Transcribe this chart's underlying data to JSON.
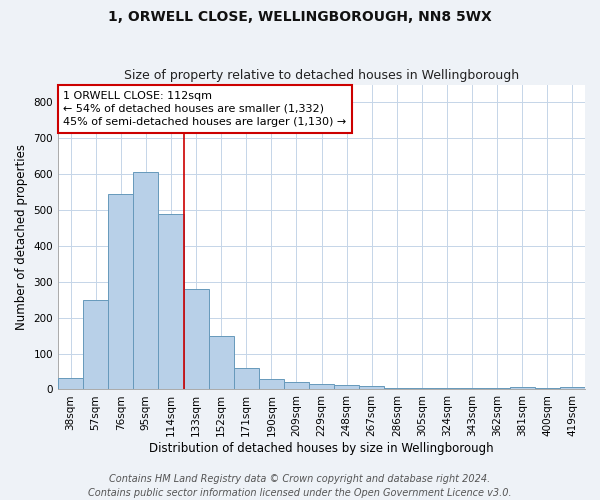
{
  "title": "1, ORWELL CLOSE, WELLINGBOROUGH, NN8 5WX",
  "subtitle": "Size of property relative to detached houses in Wellingborough",
  "xlabel": "Distribution of detached houses by size in Wellingborough",
  "ylabel": "Number of detached properties",
  "categories": [
    "38sqm",
    "57sqm",
    "76sqm",
    "95sqm",
    "114sqm",
    "133sqm",
    "152sqm",
    "171sqm",
    "190sqm",
    "209sqm",
    "229sqm",
    "248sqm",
    "267sqm",
    "286sqm",
    "305sqm",
    "324sqm",
    "343sqm",
    "362sqm",
    "381sqm",
    "400sqm",
    "419sqm"
  ],
  "values": [
    33,
    250,
    545,
    605,
    490,
    280,
    148,
    60,
    30,
    22,
    15,
    12,
    10,
    5,
    5,
    5,
    5,
    3,
    8,
    3,
    8
  ],
  "bar_color": "#b8d0e8",
  "bar_edge_color": "#6699bb",
  "property_line_color": "#cc0000",
  "property_line_index": 4.5,
  "annotation_text": "1 ORWELL CLOSE: 112sqm\n← 54% of detached houses are smaller (1,332)\n45% of semi-detached houses are larger (1,130) →",
  "annotation_box_facecolor": "#ffffff",
  "annotation_box_edgecolor": "#cc0000",
  "ylim": [
    0,
    850
  ],
  "yticks": [
    0,
    100,
    200,
    300,
    400,
    500,
    600,
    700,
    800
  ],
  "footer_line1": "Contains HM Land Registry data © Crown copyright and database right 2024.",
  "footer_line2": "Contains public sector information licensed under the Open Government Licence v3.0.",
  "bg_color": "#eef2f7",
  "plot_bg_color": "#ffffff",
  "grid_color": "#c5d5e8",
  "title_fontsize": 10,
  "subtitle_fontsize": 9,
  "label_fontsize": 8.5,
  "tick_fontsize": 7.5,
  "annotation_fontsize": 8,
  "footer_fontsize": 7
}
